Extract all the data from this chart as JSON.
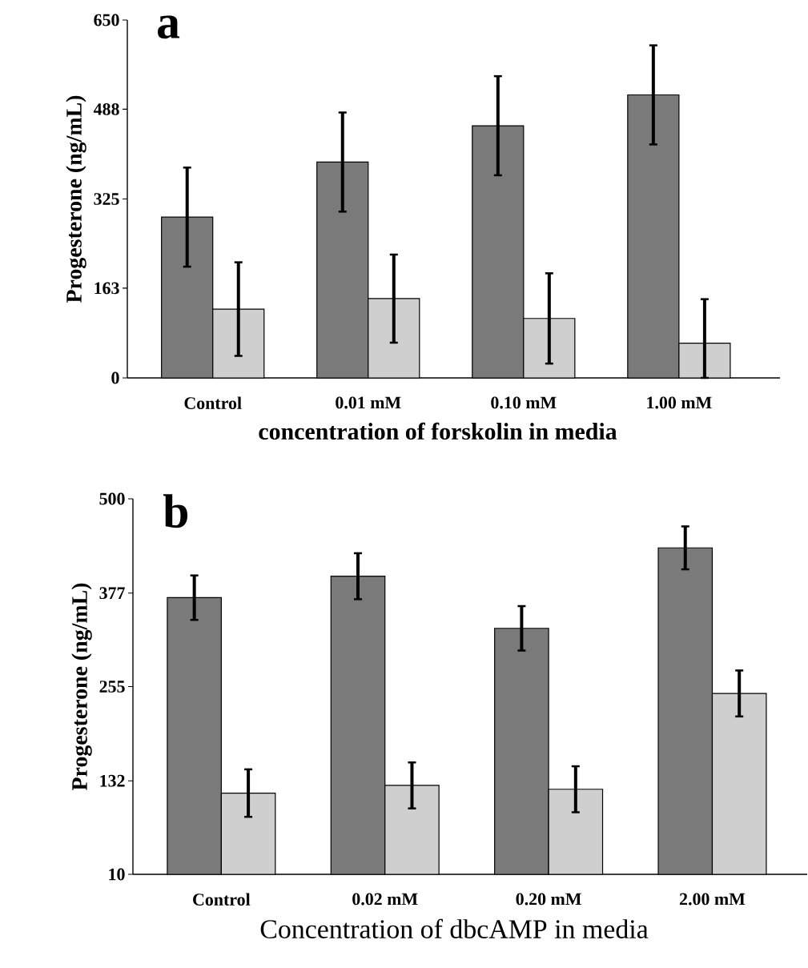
{
  "chart_data": [
    {
      "type": "bar",
      "annotations": [
        "a"
      ],
      "xlabel": "concentration of forskolin in media",
      "ylabel": "Progesterone (ng/mL)",
      "categories": [
        "Control",
        "0.01 mM",
        "0.10 mM",
        "1.00 mM"
      ],
      "ylim": [
        0,
        650
      ],
      "yticks": [
        0,
        163,
        325,
        488,
        650
      ],
      "series": [
        {
          "color": "#7a7a7a",
          "values": [
            292,
            392,
            458,
            514
          ],
          "errors": [
            90,
            90,
            90,
            90
          ]
        },
        {
          "color": "#cfcfcf",
          "values": [
            125,
            144,
            108,
            63
          ],
          "errors": [
            85,
            80,
            82,
            [
              0,
              143
            ]
          ]
        }
      ]
    },
    {
      "type": "bar",
      "annotations": [
        "b"
      ],
      "xlabel": "Concentration of dbcAMP in media",
      "ylabel": "Progesterone (ng/mL)",
      "categories": [
        "Control",
        "0.02 mM",
        "0.20 mM",
        "2.00 mM"
      ],
      "ylim": [
        10,
        500
      ],
      "yticks": [
        10,
        132,
        255,
        377,
        500
      ],
      "series": [
        {
          "color": "#7a7a7a",
          "values": [
            371,
            399,
            331,
            436
          ],
          "errors": [
            29,
            30,
            29,
            28
          ]
        },
        {
          "color": "#cfcfcf",
          "values": [
            116,
            126,
            121,
            246
          ],
          "errors": [
            31,
            30,
            30,
            30
          ]
        }
      ]
    }
  ]
}
